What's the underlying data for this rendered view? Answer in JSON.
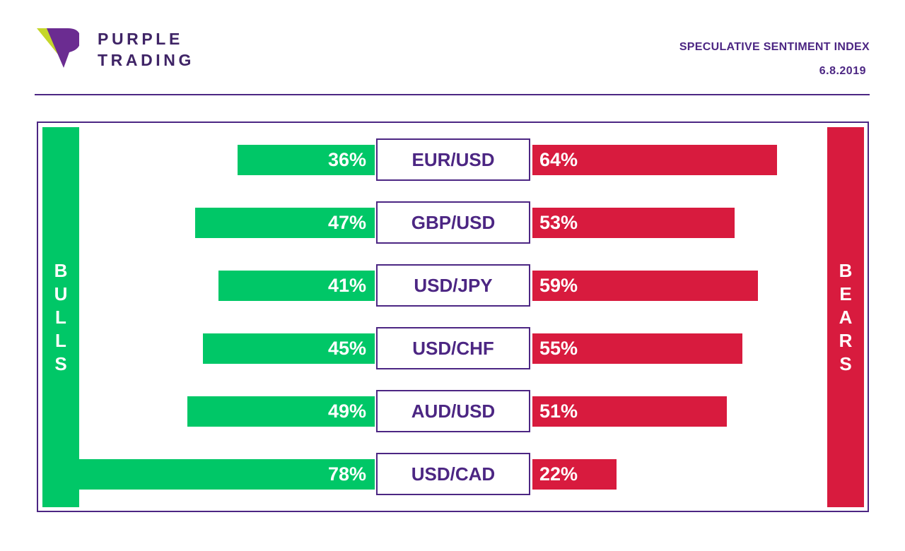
{
  "brand": {
    "line1": "PURPLE",
    "line2": "TRADING",
    "logo_icon": "purple-trading-logo-icon"
  },
  "header": {
    "title": "SPECULATIVE SENTIMENT INDEX",
    "date": "6.8.2019"
  },
  "colors": {
    "accent": "#4c2683",
    "bulls": "#00c767",
    "bears": "#d81b3e"
  },
  "chart_data": {
    "type": "bar",
    "categories": [
      "EUR/USD",
      "GBP/USD",
      "USD/JPY",
      "USD/CHF",
      "AUD/USD",
      "USD/CAD"
    ],
    "series": [
      {
        "name": "BULLS",
        "values": [
          36,
          47,
          41,
          45,
          49,
          78
        ],
        "labels": [
          "36%",
          "47%",
          "41%",
          "45%",
          "49%",
          "78%"
        ]
      },
      {
        "name": "BEARS",
        "values": [
          64,
          53,
          59,
          55,
          51,
          22
        ],
        "labels": [
          "64%",
          "53%",
          "59%",
          "55%",
          "51%",
          "22%"
        ]
      }
    ]
  }
}
